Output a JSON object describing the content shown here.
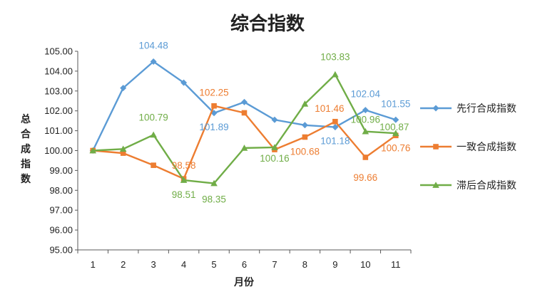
{
  "chart_data": {
    "type": "line",
    "title": "综合指数",
    "xlabel": "月份",
    "ylabel": "总合成指数",
    "categories": [
      "1",
      "2",
      "3",
      "4",
      "5",
      "6",
      "7",
      "8",
      "9",
      "10",
      "11"
    ],
    "ylim": [
      95,
      105
    ],
    "yticks": [
      "95.00",
      "96.00",
      "97.00",
      "98.00",
      "99.00",
      "100.00",
      "101.00",
      "102.00",
      "103.00",
      "104.00",
      "105.00"
    ],
    "grid": false,
    "legend": "right",
    "series": [
      {
        "name": "先行合成指数",
        "color": "#5b9bd5",
        "marker": "diamond",
        "values": [
          100.0,
          103.15,
          104.48,
          103.42,
          101.89,
          102.44,
          101.55,
          101.28,
          101.18,
          102.04,
          101.55
        ]
      },
      {
        "name": "一致合成指数",
        "color": "#ed7d31",
        "marker": "square",
        "values": [
          100.0,
          99.87,
          99.26,
          98.58,
          102.25,
          101.9,
          100.05,
          100.68,
          101.46,
          99.66,
          100.76
        ]
      },
      {
        "name": "滞后合成指数",
        "color": "#70ad47",
        "marker": "triangle",
        "values": [
          100.0,
          100.08,
          100.79,
          98.51,
          98.35,
          100.13,
          100.16,
          102.35,
          103.83,
          100.96,
          100.87
        ]
      }
    ],
    "data_labels": [
      {
        "series": 0,
        "index": 2,
        "text": "104.48",
        "dx": 0,
        "dy": -18
      },
      {
        "series": 0,
        "index": 4,
        "text": "101.89",
        "dx": 0,
        "dy": 24
      },
      {
        "series": 0,
        "index": 8,
        "text": "101.18",
        "dx": 0,
        "dy": 24
      },
      {
        "series": 0,
        "index": 9,
        "text": "102.04",
        "dx": 0,
        "dy": -18
      },
      {
        "series": 0,
        "index": 10,
        "text": "101.55",
        "dx": 0,
        "dy": -18
      },
      {
        "series": 1,
        "index": 3,
        "text": "98.58",
        "dx": 0,
        "dy": -14
      },
      {
        "series": 1,
        "index": 4,
        "text": "102.25",
        "dx": 0,
        "dy": -14
      },
      {
        "series": 1,
        "index": 7,
        "text": "100.68",
        "dx": 0,
        "dy": 25
      },
      {
        "series": 1,
        "index": 8,
        "text": "101.46",
        "dx": -8,
        "dy": -14
      },
      {
        "series": 1,
        "index": 9,
        "text": "99.66",
        "dx": 0,
        "dy": 33
      },
      {
        "series": 1,
        "index": 10,
        "text": "100.76",
        "dx": 0,
        "dy": 22
      },
      {
        "series": 2,
        "index": 2,
        "text": "100.79",
        "dx": 0,
        "dy": -20
      },
      {
        "series": 2,
        "index": 3,
        "text": "98.51",
        "dx": 0,
        "dy": 25
      },
      {
        "series": 2,
        "index": 4,
        "text": "98.35",
        "dx": 0,
        "dy": 27
      },
      {
        "series": 2,
        "index": 6,
        "text": "100.16",
        "dx": 0,
        "dy": 20
      },
      {
        "series": 2,
        "index": 8,
        "text": "103.83",
        "dx": 0,
        "dy": -20
      },
      {
        "series": 2,
        "index": 9,
        "text": "100.96",
        "dx": 0,
        "dy": -12
      },
      {
        "series": 2,
        "index": 10,
        "text": "100.87",
        "dx": -2,
        "dy": -4
      }
    ]
  }
}
